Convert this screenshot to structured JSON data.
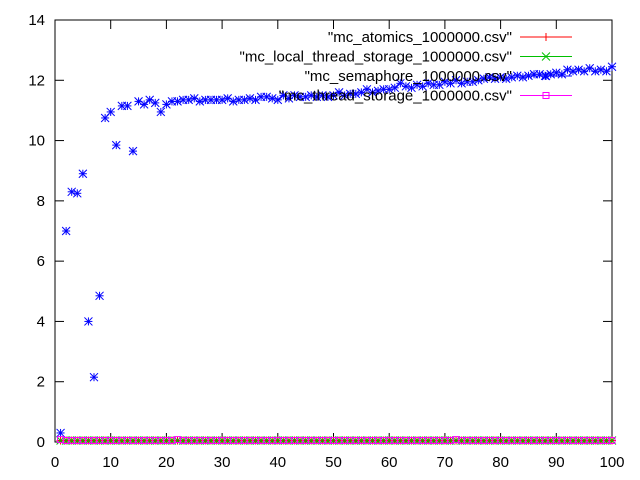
{
  "chart_data": {
    "type": "scatter",
    "title": "",
    "xlabel": "",
    "ylabel": "",
    "xlim": [
      0,
      100
    ],
    "ylim": [
      0,
      14
    ],
    "xticks": [
      0,
      10,
      20,
      30,
      40,
      50,
      60,
      70,
      80,
      90,
      100
    ],
    "yticks": [
      0,
      2,
      4,
      6,
      8,
      10,
      12,
      14
    ],
    "grid": false,
    "legend_position": "top-right",
    "series": [
      {
        "name": "\"mc_atomics_1000000.csv\"",
        "color": "#ff0000",
        "marker": "plus",
        "x": [
          1,
          2,
          3,
          4,
          5,
          6,
          7,
          8,
          9,
          10,
          11,
          12,
          13,
          14,
          15,
          16,
          17,
          18,
          19,
          20,
          21,
          22,
          23,
          24,
          25,
          26,
          27,
          28,
          29,
          30,
          31,
          32,
          33,
          34,
          35,
          36,
          37,
          38,
          39,
          40,
          41,
          42,
          43,
          44,
          45,
          46,
          47,
          48,
          49,
          50,
          51,
          52,
          53,
          54,
          55,
          56,
          57,
          58,
          59,
          60,
          61,
          62,
          63,
          64,
          65,
          66,
          67,
          68,
          69,
          70,
          71,
          72,
          73,
          74,
          75,
          76,
          77,
          78,
          79,
          80,
          81,
          82,
          83,
          84,
          85,
          86,
          87,
          88,
          89,
          90,
          91,
          92,
          93,
          94,
          95,
          96,
          97,
          98,
          99,
          100
        ],
        "y": [
          0.05,
          0.05,
          0.05,
          0.05,
          0.05,
          0.05,
          0.05,
          0.05,
          0.05,
          0.05,
          0.05,
          0.05,
          0.05,
          0.05,
          0.05,
          0.05,
          0.05,
          0.05,
          0.05,
          0.05,
          0.05,
          0.05,
          0.05,
          0.05,
          0.05,
          0.05,
          0.05,
          0.05,
          0.05,
          0.05,
          0.05,
          0.05,
          0.05,
          0.05,
          0.05,
          0.05,
          0.05,
          0.05,
          0.05,
          0.05,
          0.05,
          0.05,
          0.05,
          0.05,
          0.05,
          0.05,
          0.05,
          0.05,
          0.05,
          0.05,
          0.05,
          0.05,
          0.05,
          0.05,
          0.05,
          0.05,
          0.05,
          0.05,
          0.05,
          0.05,
          0.05,
          0.05,
          0.05,
          0.05,
          0.05,
          0.05,
          0.05,
          0.05,
          0.05,
          0.05,
          0.05,
          0.05,
          0.05,
          0.05,
          0.05,
          0.05,
          0.05,
          0.05,
          0.05,
          0.05,
          0.05,
          0.05,
          0.05,
          0.05,
          0.05,
          0.05,
          0.05,
          0.05,
          0.05,
          0.05,
          0.05,
          0.05,
          0.05,
          0.05,
          0.05,
          0.05,
          0.05,
          0.05,
          0.05,
          0.05
        ]
      },
      {
        "name": "\"mc_local_thread_storage_1000000.csv\"",
        "color": "#00c000",
        "marker": "cross",
        "x": [
          1,
          2,
          3,
          4,
          5,
          6,
          7,
          8,
          9,
          10,
          11,
          12,
          13,
          14,
          15,
          16,
          17,
          18,
          19,
          20,
          21,
          22,
          23,
          24,
          25,
          26,
          27,
          28,
          29,
          30,
          31,
          32,
          33,
          34,
          35,
          36,
          37,
          38,
          39,
          40,
          41,
          42,
          43,
          44,
          45,
          46,
          47,
          48,
          49,
          50,
          51,
          52,
          53,
          54,
          55,
          56,
          57,
          58,
          59,
          60,
          61,
          62,
          63,
          64,
          65,
          66,
          67,
          68,
          69,
          70,
          71,
          72,
          73,
          74,
          75,
          76,
          77,
          78,
          79,
          80,
          81,
          82,
          83,
          84,
          85,
          86,
          87,
          88,
          89,
          90,
          91,
          92,
          93,
          94,
          95,
          96,
          97,
          98,
          99,
          100
        ],
        "y": [
          0.05,
          0.05,
          0.05,
          0.05,
          0.05,
          0.05,
          0.05,
          0.05,
          0.05,
          0.05,
          0.05,
          0.05,
          0.05,
          0.05,
          0.05,
          0.05,
          0.05,
          0.05,
          0.05,
          0.05,
          0.05,
          0.05,
          0.05,
          0.05,
          0.05,
          0.05,
          0.05,
          0.05,
          0.05,
          0.05,
          0.05,
          0.05,
          0.05,
          0.05,
          0.05,
          0.05,
          0.05,
          0.05,
          0.05,
          0.05,
          0.05,
          0.05,
          0.05,
          0.05,
          0.05,
          0.05,
          0.05,
          0.05,
          0.05,
          0.05,
          0.05,
          0.05,
          0.05,
          0.05,
          0.05,
          0.05,
          0.05,
          0.05,
          0.05,
          0.05,
          0.05,
          0.05,
          0.05,
          0.05,
          0.05,
          0.05,
          0.05,
          0.05,
          0.05,
          0.05,
          0.05,
          0.05,
          0.05,
          0.05,
          0.05,
          0.05,
          0.05,
          0.05,
          0.05,
          0.05,
          0.05,
          0.05,
          0.05,
          0.05,
          0.05,
          0.05,
          0.05,
          0.05,
          0.05,
          0.05,
          0.05,
          0.05,
          0.05,
          0.05,
          0.05,
          0.05,
          0.05,
          0.05,
          0.05,
          0.05
        ]
      },
      {
        "name": "\"mc_semaphore_1000000.csv\"",
        "color": "#0000ff",
        "marker": "star",
        "x": [
          1,
          2,
          3,
          4,
          5,
          6,
          7,
          8,
          9,
          10,
          11,
          12,
          13,
          14,
          15,
          16,
          17,
          18,
          19,
          20,
          21,
          22,
          23,
          24,
          25,
          26,
          27,
          28,
          29,
          30,
          31,
          32,
          33,
          34,
          35,
          36,
          37,
          38,
          39,
          40,
          41,
          42,
          43,
          44,
          45,
          46,
          47,
          48,
          49,
          50,
          51,
          52,
          53,
          54,
          55,
          56,
          57,
          58,
          59,
          60,
          61,
          62,
          63,
          64,
          65,
          66,
          67,
          68,
          69,
          70,
          71,
          72,
          73,
          74,
          75,
          76,
          77,
          78,
          79,
          80,
          81,
          82,
          83,
          84,
          85,
          86,
          87,
          88,
          89,
          90,
          91,
          92,
          93,
          94,
          95,
          96,
          97,
          98,
          99,
          100
        ],
        "y": [
          0.3,
          7.0,
          8.3,
          8.25,
          8.9,
          4.0,
          2.15,
          4.85,
          10.75,
          10.95,
          9.85,
          11.15,
          11.15,
          9.65,
          11.3,
          11.2,
          11.35,
          11.25,
          10.95,
          11.2,
          11.3,
          11.3,
          11.35,
          11.35,
          11.4,
          11.3,
          11.35,
          11.35,
          11.35,
          11.35,
          11.4,
          11.3,
          11.35,
          11.35,
          11.4,
          11.35,
          11.45,
          11.45,
          11.4,
          11.35,
          11.5,
          11.4,
          11.5,
          11.45,
          11.45,
          11.5,
          11.45,
          11.5,
          11.45,
          11.5,
          11.6,
          11.5,
          11.55,
          11.55,
          11.6,
          11.7,
          11.6,
          11.65,
          11.7,
          11.7,
          11.75,
          11.9,
          11.8,
          11.75,
          11.85,
          11.8,
          11.9,
          11.85,
          11.85,
          11.95,
          11.9,
          12.0,
          11.9,
          11.95,
          11.95,
          12.0,
          12.05,
          12.1,
          12.05,
          12.1,
          12.05,
          12.1,
          12.15,
          12.1,
          12.15,
          12.2,
          12.2,
          12.15,
          12.2,
          12.25,
          12.2,
          12.35,
          12.3,
          12.35,
          12.3,
          12.4,
          12.3,
          12.35,
          12.3,
          12.45
        ]
      },
      {
        "name": "\"mc_thread_storage_1000000.csv\"",
        "color": "#ff00ff",
        "marker": "box",
        "x": [
          1,
          2,
          3,
          4,
          5,
          6,
          7,
          8,
          9,
          10,
          11,
          12,
          13,
          14,
          15,
          16,
          17,
          18,
          19,
          20,
          21,
          22,
          23,
          24,
          25,
          26,
          27,
          28,
          29,
          30,
          31,
          32,
          33,
          34,
          35,
          36,
          37,
          38,
          39,
          40,
          41,
          42,
          43,
          44,
          45,
          46,
          47,
          48,
          49,
          50,
          51,
          52,
          53,
          54,
          55,
          56,
          57,
          58,
          59,
          60,
          61,
          62,
          63,
          64,
          65,
          66,
          67,
          68,
          69,
          70,
          71,
          72,
          73,
          74,
          75,
          76,
          77,
          78,
          79,
          80,
          81,
          82,
          83,
          84,
          85,
          86,
          87,
          88,
          89,
          90,
          91,
          92,
          93,
          94,
          95,
          96,
          97,
          98,
          99,
          100
        ],
        "y": [
          0.08,
          0.05,
          0.05,
          0.05,
          0.05,
          0.05,
          0.05,
          0.05,
          0.05,
          0.05,
          0.05,
          0.05,
          0.05,
          0.05,
          0.05,
          0.05,
          0.05,
          0.05,
          0.05,
          0.05,
          0.05,
          0.08,
          0.05,
          0.05,
          0.05,
          0.05,
          0.05,
          0.05,
          0.05,
          0.05,
          0.05,
          0.05,
          0.05,
          0.05,
          0.05,
          0.05,
          0.05,
          0.05,
          0.05,
          0.05,
          0.05,
          0.05,
          0.05,
          0.05,
          0.05,
          0.05,
          0.05,
          0.05,
          0.05,
          0.05,
          0.05,
          0.05,
          0.05,
          0.05,
          0.05,
          0.05,
          0.05,
          0.05,
          0.05,
          0.05,
          0.05,
          0.05,
          0.05,
          0.05,
          0.05,
          0.05,
          0.05,
          0.05,
          0.05,
          0.05,
          0.05,
          0.08,
          0.05,
          0.05,
          0.05,
          0.05,
          0.05,
          0.05,
          0.05,
          0.05,
          0.05,
          0.05,
          0.05,
          0.05,
          0.05,
          0.05,
          0.05,
          0.05,
          0.05,
          0.05,
          0.05,
          0.05,
          0.05,
          0.05,
          0.05,
          0.05,
          0.05,
          0.05,
          0.05,
          0.05
        ]
      }
    ]
  }
}
